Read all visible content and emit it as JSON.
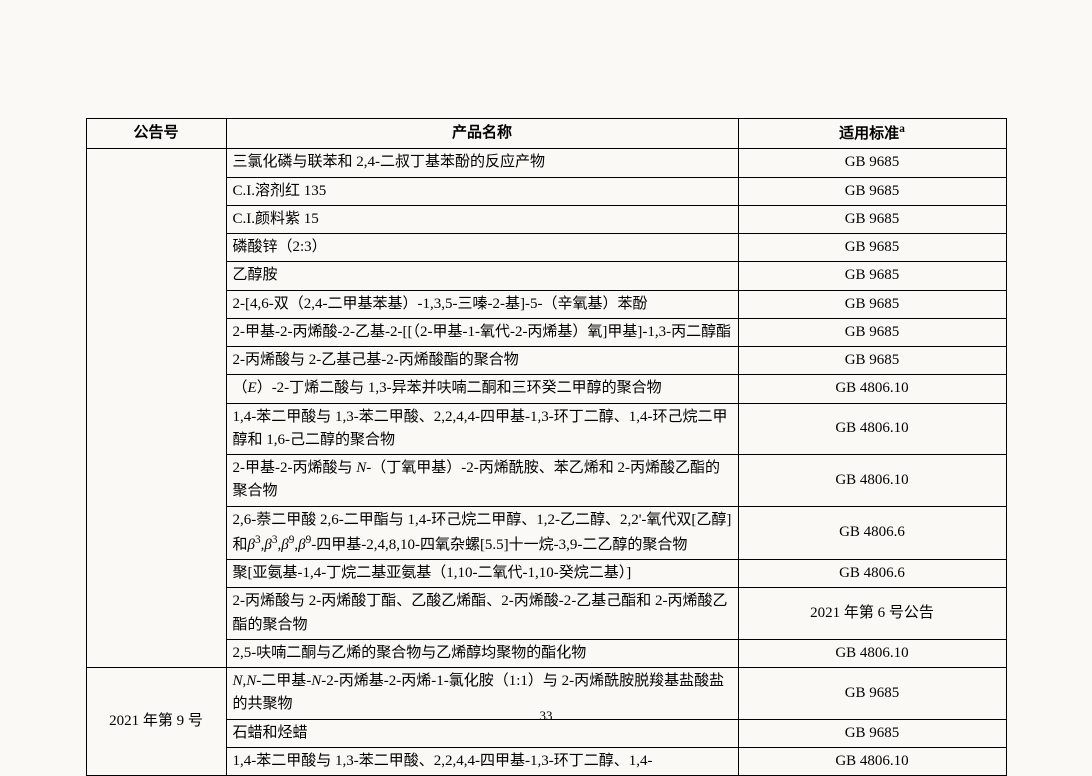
{
  "columns": {
    "announce": "公告号",
    "product": "产品名称",
    "standard": "适用标准",
    "standard_note": "a"
  },
  "announce_blank": "",
  "announce_2021_9": "2021 年第 9 号",
  "page_number": "33",
  "rows": [
    {
      "product_html": "三氯化磷与联苯和 2,4-二叔丁基苯酚的反应产物",
      "standard": "GB 9685"
    },
    {
      "product_html": "C.I.溶剂红 135",
      "standard": "GB 9685"
    },
    {
      "product_html": "C.I.颜料紫 15",
      "standard": "GB 9685"
    },
    {
      "product_html": "磷酸锌（2:3）",
      "standard": "GB 9685"
    },
    {
      "product_html": "乙醇胺",
      "standard": "GB 9685"
    },
    {
      "product_html": "2-[4,6-双（2,4-二甲基苯基）-1,3,5-三嗪-2-基]-5-（辛氧基）苯酚",
      "standard": "GB 9685"
    },
    {
      "product_html": "2-甲基-2-丙烯酸-2-乙基-2-[[（2-甲基-1-氧代-2-丙烯基）氧]甲基]-1,3-丙二醇酯",
      "standard": "GB 9685"
    },
    {
      "product_html": "2-丙烯酸与 2-乙基己基-2-丙烯酸酯的聚合物",
      "standard": "GB 9685"
    },
    {
      "product_html": "（<em class=\"it\">E</em>）-2-丁烯二酸与 1,3-异苯并呋喃二酮和三环癸二甲醇的聚合物",
      "standard": "GB 4806.10"
    },
    {
      "product_html": "1,4-苯二甲酸与 1,3-苯二甲酸、2,2,4,4-四甲基-1,3-环丁二醇、1,4-环己烷二甲醇和 1,6-己二醇的聚合物",
      "standard": "GB 4806.10"
    },
    {
      "product_html": "2-甲基-2-丙烯酸与 <em class=\"it\">N</em>-（丁氧甲基）-2-丙烯酰胺、苯乙烯和 2-丙烯酸乙酯的聚合物",
      "standard": "GB 4806.10"
    },
    {
      "product_html": "2,6-萘二甲酸 2,6-二甲酯与 1,4-环己烷二甲醇、1,2-乙二醇、2,2'-氧代双[乙醇]和<em class=\"it\">β</em><span class=\"sup\">3</span>,<em class=\"it\">β</em><span class=\"sup\">3</span>,<em class=\"it\">β</em><span class=\"sup\">9</span>,<em class=\"it\">β</em><span class=\"sup\">9</span>-四甲基-2,4,8,10-四氧杂螺[5.5]十一烷-3,9-二乙醇的聚合物",
      "standard": "GB 4806.6"
    },
    {
      "product_html": "聚[亚氨基-1,4-丁烷二基亚氨基（1,10-二氧代-1,10-癸烷二基）]",
      "standard": "GB 4806.6"
    },
    {
      "product_html": "2-丙烯酸与 2-丙烯酸丁酯、乙酸乙烯酯、2-丙烯酸-2-乙基己酯和 2-丙烯酸乙酯的聚合物",
      "standard": "2021 年第 6 号公告"
    },
    {
      "product_html": "2,5-呋喃二酮与乙烯的聚合物与乙烯醇均聚物的酯化物",
      "standard": "GB 4806.10"
    },
    {
      "product_html": "<em class=\"it\">N</em>,<em class=\"it\">N</em>-二甲基-<em class=\"it\">N</em>-2-丙烯基-2-丙烯-1-氯化胺（1:1）与 2-丙烯酰胺脱羧基盐酸盐的共聚物",
      "standard": "GB 9685"
    },
    {
      "product_html": "石蜡和烃蜡",
      "standard": "GB 9685"
    },
    {
      "product_html": "1,4-苯二甲酸与 1,3-苯二甲酸、2,2,4,4-四甲基-1,3-环丁二醇、1,4-",
      "standard": "GB 4806.10"
    }
  ]
}
